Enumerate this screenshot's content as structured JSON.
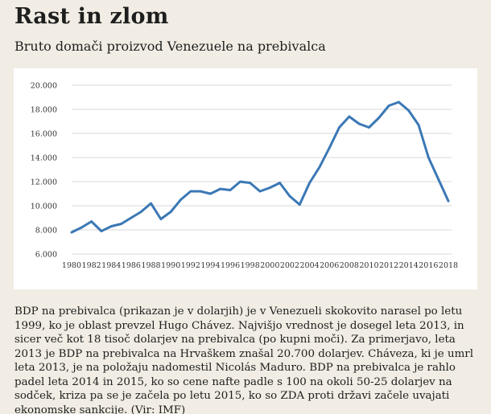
{
  "title": "Rast in zlom",
  "subtitle": "Bruto domači proizvod Venezuele na prebivalca",
  "caption": "BDP na prebivalca (prikazan je v dolarjih) je v Venezueli skokovito narasel po letu 1999, ko je oblast prevzel Hugo Chávez. Najvišjo vrednost je dosegel leta 2013, in sicer več kot 18 tisoč dolarjev na prebivalca (po kupni moči). Za primerjavo, leta 2013 je BDP na prebivalca na Hrvaškem znašal 20.700 dolarjev. Cháveza, ki je umrl leta 2013, je na položaju nadomestil Nicolás Maduro. BDP na prebivalca je rahlo padel leta 2014 in 2015, ko so cene nafte padle s 100 na okoli 50-25 dolarjev na sodček, kriza pa se je začela po letu 2015, ko so ZDA proti državi začele uvajati ekonomske sankcije. (Vir: IMF)",
  "chart_data": {
    "type": "line",
    "title": "Bruto domači proizvod Venezuele na prebivalca",
    "xlabel": "",
    "ylabel": "",
    "xlim": [
      1980,
      2018
    ],
    "ylim": [
      6000,
      20000
    ],
    "grid": true,
    "line_color": "#3b78b5",
    "grid_color": "#d9d9d9",
    "x_ticks": [
      1980,
      1982,
      1984,
      1986,
      1988,
      1990,
      1992,
      1994,
      1996,
      1998,
      2000,
      2002,
      2004,
      2006,
      2008,
      2010,
      2012,
      2014,
      2016,
      2018
    ],
    "x_tick_labels": [
      "1980",
      "1982",
      "1984",
      "1986",
      "1988",
      "1990",
      "1992",
      "1994",
      "1996",
      "1998",
      "2000",
      "2002",
      "2004",
      "2006",
      "2008",
      "2010",
      "2012",
      "2014",
      "2016",
      "2018"
    ],
    "y_ticks": [
      6000,
      8000,
      10000,
      12000,
      14000,
      16000,
      18000,
      20000
    ],
    "y_tick_labels": [
      "6.000",
      "8.000",
      "10.000",
      "12.000",
      "14.000",
      "16.000",
      "18.000",
      "20.000"
    ],
    "series": [
      {
        "x": [
          1980,
          1981,
          1982,
          1983,
          1984,
          1985,
          1986,
          1987,
          1988,
          1989,
          1990,
          1991,
          1992,
          1993,
          1994,
          1995,
          1996,
          1997,
          1998,
          1999,
          2000,
          2001,
          2002,
          2003,
          2004,
          2005,
          2006,
          2007,
          2008,
          2009,
          2010,
          2011,
          2012,
          2013,
          2014,
          2015,
          2016,
          2017,
          2018
        ],
        "values": [
          7800,
          8200,
          8700,
          7900,
          8300,
          8500,
          9000,
          9500,
          10200,
          8900,
          9500,
          10500,
          11200,
          11200,
          11000,
          11400,
          11300,
          12000,
          11900,
          11200,
          11500,
          11900,
          10800,
          10100,
          11900,
          13200,
          14800,
          16500,
          17400,
          16800,
          16500,
          17300,
          18300,
          18600,
          17900,
          16700,
          14000,
          12200,
          10400
        ]
      }
    ]
  }
}
